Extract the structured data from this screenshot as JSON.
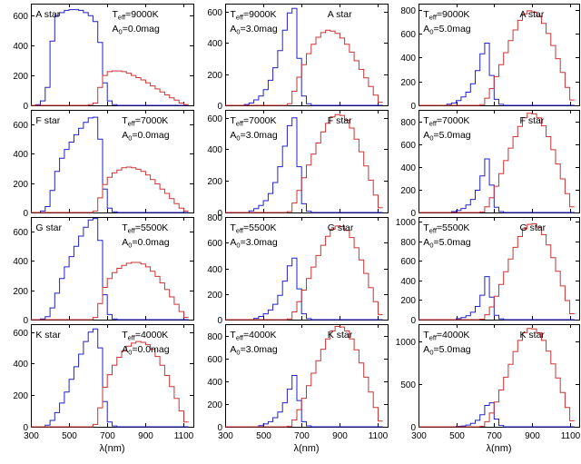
{
  "chart_data": {
    "type": "line",
    "description": "4x3 grid of simulated stellar spectra: blue (BP) and red (RP) stepped flux curves vs wavelength for A/F/G/K stars at extinctions A0 = 0, 3, 5 mag",
    "xlabel": "λ(nm)",
    "xlim": [
      300,
      1150
    ],
    "x_ticks": [
      300,
      500,
      700,
      900,
      1100
    ],
    "x": [
      300,
      325,
      350,
      375,
      400,
      425,
      450,
      475,
      500,
      525,
      550,
      575,
      600,
      625,
      650,
      675,
      700,
      725,
      750,
      775,
      800,
      825,
      850,
      875,
      900,
      925,
      950,
      975,
      1000,
      1025,
      1050,
      1075,
      1100
    ],
    "colors": {
      "bp": "#2222cc",
      "rp": "#cc3333",
      "axis": "#000000"
    },
    "annotation_parts": {
      "teff_main": "T",
      "teff_sub": "eff",
      "a0_main": "A",
      "a0_sub": "0",
      "eq": "="
    },
    "rows": [
      "A star",
      "F star",
      "G star",
      "K star"
    ],
    "teff_by_row": [
      "9000K",
      "7000K",
      "5500K",
      "4000K"
    ],
    "a0_by_col": [
      "0.0mag",
      "3.0mag",
      "5.0mag"
    ],
    "panels": [
      {
        "row": 0,
        "col": 0,
        "star": "A star",
        "teff": "9000K",
        "a0": "0.0mag",
        "ylim": [
          0,
          680
        ],
        "y_ticks": [
          0,
          200,
          400,
          600
        ],
        "star_x": 0.03,
        "params_x": 0.5,
        "bp": [
          0,
          5,
          30,
          120,
          430,
          600,
          620,
          635,
          640,
          640,
          635,
          620,
          600,
          560,
          420,
          150,
          30,
          5,
          0,
          0,
          0,
          0,
          0,
          0,
          0,
          0,
          0,
          0,
          0,
          0,
          0,
          0,
          0
        ],
        "rp": [
          0,
          0,
          0,
          0,
          0,
          0,
          0,
          0,
          0,
          0,
          0,
          0,
          5,
          15,
          120,
          200,
          225,
          230,
          230,
          225,
          215,
          200,
          185,
          170,
          150,
          130,
          110,
          90,
          70,
          50,
          35,
          15,
          5
        ]
      },
      {
        "row": 0,
        "col": 1,
        "star": "A star",
        "teff": "9000K",
        "a0": "3.0mag",
        "ylim": [
          0,
          650
        ],
        "y_ticks": [
          0,
          200,
          400,
          600
        ],
        "star_x": 0.63,
        "params_x": 0.03,
        "bp": [
          0,
          0,
          0,
          0,
          5,
          15,
          35,
          60,
          100,
          160,
          240,
          350,
          480,
          590,
          620,
          300,
          60,
          10,
          0,
          0,
          0,
          0,
          0,
          0,
          0,
          0,
          0,
          0,
          0,
          0,
          0,
          0,
          0
        ],
        "rp": [
          0,
          0,
          0,
          0,
          0,
          0,
          0,
          0,
          0,
          0,
          0,
          0,
          0,
          10,
          90,
          180,
          260,
          330,
          390,
          435,
          465,
          480,
          475,
          460,
          430,
          390,
          340,
          285,
          230,
          175,
          120,
          65,
          20
        ]
      },
      {
        "row": 0,
        "col": 2,
        "star": "A star",
        "teff": "9000K",
        "a0": "5.0mag",
        "ylim": [
          0,
          850
        ],
        "y_ticks": [
          0,
          200,
          400,
          600,
          800
        ],
        "star_x": 0.63,
        "params_x": 0.03,
        "bp": [
          0,
          0,
          0,
          0,
          0,
          0,
          10,
          20,
          40,
          70,
          110,
          180,
          290,
          430,
          520,
          250,
          50,
          8,
          0,
          0,
          0,
          0,
          0,
          0,
          0,
          0,
          0,
          0,
          0,
          0,
          0,
          0,
          0
        ],
        "rp": [
          0,
          0,
          0,
          0,
          0,
          0,
          0,
          0,
          0,
          0,
          0,
          0,
          0,
          5,
          60,
          140,
          240,
          340,
          440,
          540,
          630,
          710,
          765,
          790,
          780,
          745,
          685,
          600,
          500,
          390,
          275,
          150,
          45
        ]
      },
      {
        "row": 1,
        "col": 0,
        "star": "F star",
        "teff": "7000K",
        "a0": "0.0mag",
        "ylim": [
          0,
          700
        ],
        "y_ticks": [
          0,
          200,
          400,
          600
        ],
        "star_x": 0.03,
        "params_x": 0.56,
        "bp": [
          0,
          0,
          10,
          40,
          150,
          280,
          370,
          430,
          480,
          530,
          575,
          615,
          645,
          650,
          500,
          160,
          30,
          5,
          0,
          0,
          0,
          0,
          0,
          0,
          0,
          0,
          0,
          0,
          0,
          0,
          0,
          0,
          0
        ],
        "rp": [
          0,
          0,
          0,
          0,
          0,
          0,
          0,
          0,
          0,
          0,
          0,
          0,
          0,
          10,
          100,
          190,
          240,
          270,
          290,
          305,
          310,
          305,
          295,
          280,
          255,
          225,
          195,
          160,
          130,
          95,
          60,
          30,
          10
        ]
      },
      {
        "row": 1,
        "col": 1,
        "star": "F star",
        "teff": "7000K",
        "a0": "3.0mag",
        "ylim": [
          0,
          650
        ],
        "y_ticks": [
          0,
          200,
          400,
          600
        ],
        "star_x": 0.63,
        "params_x": 0.03,
        "bp": [
          0,
          0,
          0,
          0,
          0,
          10,
          25,
          45,
          75,
          120,
          190,
          290,
          420,
          550,
          600,
          290,
          55,
          8,
          0,
          0,
          0,
          0,
          0,
          0,
          0,
          0,
          0,
          0,
          0,
          0,
          0,
          0,
          0
        ],
        "rp": [
          0,
          0,
          0,
          0,
          0,
          0,
          0,
          0,
          0,
          0,
          0,
          0,
          0,
          5,
          60,
          140,
          220,
          300,
          370,
          440,
          510,
          565,
          605,
          620,
          615,
          585,
          535,
          465,
          385,
          295,
          205,
          110,
          30
        ]
      },
      {
        "row": 1,
        "col": 2,
        "star": "F star",
        "teff": "7000K",
        "a0": "5.0mag",
        "ylim": [
          0,
          900
        ],
        "y_ticks": [
          0,
          200,
          400,
          600,
          800
        ],
        "star_x": 0.63,
        "params_x": 0.03,
        "bp": [
          0,
          0,
          0,
          0,
          0,
          0,
          0,
          8,
          18,
          35,
          65,
          115,
          195,
          320,
          470,
          240,
          45,
          8,
          0,
          0,
          0,
          0,
          0,
          0,
          0,
          0,
          0,
          0,
          0,
          0,
          0,
          0,
          0
        ],
        "rp": [
          0,
          0,
          0,
          0,
          0,
          0,
          0,
          0,
          0,
          0,
          0,
          0,
          0,
          5,
          50,
          130,
          230,
          340,
          455,
          565,
          665,
          755,
          830,
          870,
          865,
          830,
          760,
          665,
          550,
          425,
          295,
          165,
          50
        ]
      },
      {
        "row": 2,
        "col": 0,
        "star": "G star",
        "teff": "5500K",
        "a0": "0.0mag",
        "ylim": [
          0,
          700
        ],
        "y_ticks": [
          0,
          200,
          400,
          600
        ],
        "star_x": 0.03,
        "params_x": 0.56,
        "bp": [
          0,
          0,
          5,
          20,
          80,
          180,
          280,
          360,
          430,
          500,
          570,
          630,
          680,
          690,
          540,
          170,
          35,
          5,
          0,
          0,
          0,
          0,
          0,
          0,
          0,
          0,
          0,
          0,
          0,
          0,
          0,
          0,
          0
        ],
        "rp": [
          0,
          0,
          0,
          0,
          0,
          0,
          0,
          0,
          0,
          0,
          0,
          0,
          0,
          15,
          110,
          220,
          280,
          320,
          350,
          370,
          385,
          390,
          390,
          380,
          360,
          330,
          295,
          250,
          205,
          155,
          105,
          55,
          15
        ]
      },
      {
        "row": 2,
        "col": 1,
        "star": "G star",
        "teff": "5500K",
        "a0": "3.0mag",
        "ylim": [
          0,
          800
        ],
        "y_ticks": [
          0,
          200,
          400,
          600,
          800
        ],
        "star_x": 0.63,
        "params_x": 0.03,
        "bp": [
          0,
          0,
          0,
          0,
          0,
          0,
          10,
          25,
          45,
          75,
          120,
          190,
          300,
          420,
          480,
          240,
          45,
          8,
          0,
          0,
          0,
          0,
          0,
          0,
          0,
          0,
          0,
          0,
          0,
          0,
          0,
          0,
          0
        ],
        "rp": [
          0,
          0,
          0,
          0,
          0,
          0,
          0,
          0,
          0,
          0,
          0,
          0,
          0,
          5,
          60,
          140,
          230,
          320,
          410,
          500,
          580,
          650,
          705,
          730,
          725,
          695,
          640,
          560,
          465,
          360,
          250,
          140,
          40
        ]
      },
      {
        "row": 2,
        "col": 2,
        "star": "G star",
        "teff": "5500K",
        "a0": "5.0mag",
        "ylim": [
          0,
          1050
        ],
        "y_ticks": [
          0,
          200,
          400,
          600,
          800,
          1000
        ],
        "star_x": 0.63,
        "params_x": 0.03,
        "bp": [
          0,
          0,
          0,
          0,
          0,
          0,
          0,
          0,
          10,
          20,
          40,
          75,
          135,
          250,
          440,
          230,
          45,
          8,
          0,
          0,
          0,
          0,
          0,
          0,
          0,
          0,
          0,
          0,
          0,
          0,
          0,
          0,
          0
        ],
        "rp": [
          0,
          0,
          0,
          0,
          0,
          0,
          0,
          0,
          0,
          0,
          0,
          0,
          0,
          5,
          50,
          130,
          240,
          360,
          490,
          620,
          740,
          850,
          930,
          975,
          980,
          945,
          870,
          765,
          635,
          495,
          345,
          195,
          60
        ]
      },
      {
        "row": 3,
        "col": 0,
        "star": "K star",
        "teff": "4000K",
        "a0": "0.0mag",
        "ylim": [
          0,
          650
        ],
        "y_ticks": [
          0,
          200,
          400,
          600
        ],
        "star_x": 0.03,
        "params_x": 0.56,
        "bp": [
          0,
          0,
          0,
          10,
          40,
          90,
          150,
          220,
          300,
          380,
          460,
          540,
          600,
          620,
          500,
          160,
          30,
          5,
          0,
          0,
          0,
          0,
          0,
          0,
          0,
          0,
          0,
          0,
          0,
          0,
          0,
          0,
          0
        ],
        "rp": [
          0,
          0,
          0,
          0,
          0,
          0,
          0,
          0,
          0,
          0,
          0,
          0,
          0,
          15,
          120,
          250,
          330,
          390,
          440,
          480,
          510,
          530,
          540,
          535,
          520,
          490,
          445,
          390,
          325,
          255,
          180,
          100,
          30
        ]
      },
      {
        "row": 3,
        "col": 1,
        "star": "K star",
        "teff": "4000K",
        "a0": "3.0mag",
        "ylim": [
          0,
          900
        ],
        "y_ticks": [
          0,
          200,
          400,
          600,
          800
        ],
        "star_x": 0.63,
        "params_x": 0.03,
        "bp": [
          0,
          0,
          0,
          0,
          0,
          0,
          0,
          10,
          25,
          45,
          80,
          130,
          210,
          330,
          450,
          230,
          45,
          8,
          0,
          0,
          0,
          0,
          0,
          0,
          0,
          0,
          0,
          0,
          0,
          0,
          0,
          0,
          0
        ],
        "rp": [
          0,
          0,
          0,
          0,
          0,
          0,
          0,
          0,
          0,
          0,
          0,
          0,
          0,
          5,
          60,
          150,
          250,
          360,
          470,
          580,
          680,
          770,
          840,
          880,
          875,
          840,
          770,
          675,
          560,
          435,
          305,
          170,
          50
        ]
      },
      {
        "row": 3,
        "col": 2,
        "star": "K star",
        "teff": "4000K",
        "a0": "5.0mag",
        "ylim": [
          0,
          1200
        ],
        "y_ticks": [
          0,
          500,
          1000
        ],
        "star_x": 0.63,
        "params_x": 0.03,
        "bp": [
          0,
          0,
          0,
          0,
          0,
          0,
          0,
          0,
          5,
          10,
          20,
          40,
          75,
          140,
          250,
          280,
          90,
          15,
          0,
          0,
          0,
          0,
          0,
          0,
          0,
          0,
          0,
          0,
          0,
          0,
          0,
          0,
          0
        ],
        "rp": [
          0,
          0,
          0,
          0,
          0,
          0,
          0,
          0,
          0,
          0,
          0,
          0,
          0,
          5,
          60,
          160,
          290,
          430,
          580,
          730,
          880,
          1010,
          1100,
          1150,
          1145,
          1100,
          1010,
          885,
          735,
          570,
          400,
          225,
          70
        ]
      }
    ]
  }
}
